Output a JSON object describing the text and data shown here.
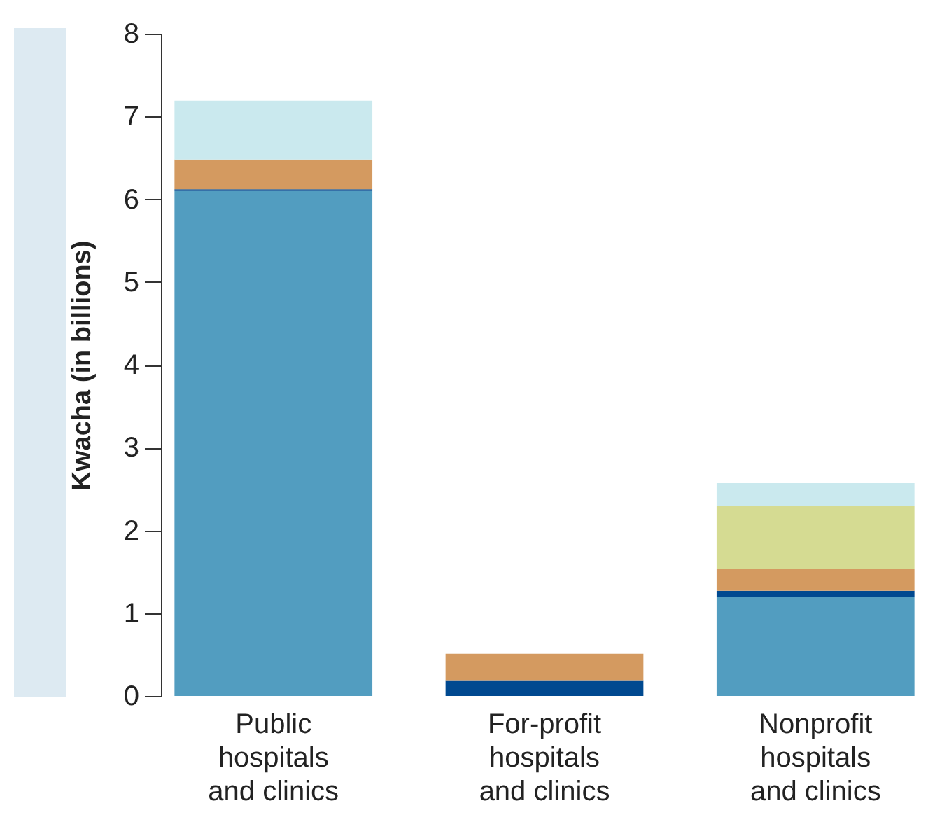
{
  "chart_data": {
    "type": "bar",
    "stacked": true,
    "ylabel": "Kwacha (in billions)",
    "categories": [
      "Public hospitals and clinics",
      "For-profit hospitals and clinics",
      "Nonprofit hospitals and clinics"
    ],
    "series": [
      {
        "color": "#529dc0",
        "values": [
          6.1,
          0,
          1.2
        ]
      },
      {
        "color": "#004990",
        "values": [
          0.02,
          0.19,
          0.07
        ]
      },
      {
        "color": "#d49a60",
        "values": [
          0.36,
          0.32,
          0.27
        ]
      },
      {
        "color": "#d5db92",
        "values": [
          0,
          0,
          0.76
        ]
      },
      {
        "color": "#cae9ee",
        "values": [
          0.71,
          0,
          0.27
        ]
      }
    ],
    "ylim": [
      0,
      8
    ],
    "yticks": [
      0,
      1,
      2,
      3,
      4,
      5,
      6,
      7,
      8
    ],
    "grid": false,
    "legend": false
  }
}
